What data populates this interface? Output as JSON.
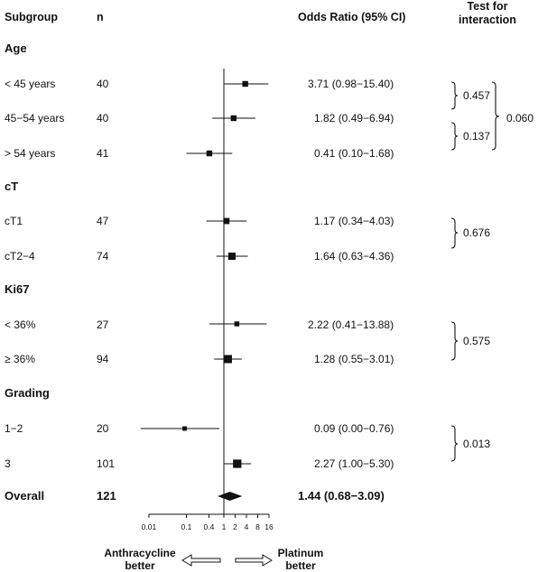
{
  "headers": {
    "subgroup": "Subgroup",
    "n": "n",
    "or": "Odds Ratio (95% CI)",
    "test_line1": "Test for",
    "test_line2": "interaction"
  },
  "groups": [
    "Age",
    "cT",
    "Ki67",
    "Grading"
  ],
  "rows": [
    {
      "label": "< 45 years",
      "n": "40",
      "or_text": "3.71 (0.98−15.40)"
    },
    {
      "label": "45−54 years",
      "n": "40",
      "or_text": "1.82 (0.49−6.94)"
    },
    {
      "label": "> 54 years",
      "n": "41",
      "or_text": "0.41 (0.10−1.68)"
    },
    {
      "label": "cT1",
      "n": "47",
      "or_text": "1.17 (0.34−4.03)"
    },
    {
      "label": "cT2−4",
      "n": "74",
      "or_text": "1.64 (0.63−4.36)"
    },
    {
      "label": "< 36%",
      "n": "27",
      "or_text": "2.22 (0.41−13.88)"
    },
    {
      "label": "≥ 36%",
      "n": "94",
      "or_text": "1.28 (0.55−3.01)"
    },
    {
      "label": "1−2",
      "n": "20",
      "or_text": "0.09 (0.00−0.76)"
    },
    {
      "label": "3",
      "n": "101",
      "or_text": "2.27 (1.00−5.30)"
    }
  ],
  "overall": {
    "label": "Overall",
    "n": "121",
    "or_text": "1.44 (0.68−3.09)"
  },
  "interactions": [
    "0.457",
    "0.137",
    "0.060",
    "0.676",
    "0.575",
    "0.013"
  ],
  "footer": {
    "left_line1": "Anthracycline",
    "left_line2": "better",
    "right_line1": "Platinum",
    "right_line2": "better"
  },
  "chart_data": {
    "type": "forest",
    "x_scale": "log",
    "reference_line": 1,
    "x_ticks": [
      "0.01",
      "0.1",
      "0.4",
      "1",
      "2",
      "4",
      "8",
      "16"
    ],
    "points": [
      {
        "or": 3.71,
        "lo": 0.98,
        "hi": 15.4,
        "n": 40
      },
      {
        "or": 1.82,
        "lo": 0.49,
        "hi": 6.94,
        "n": 40
      },
      {
        "or": 0.41,
        "lo": 0.1,
        "hi": 1.68,
        "n": 41
      },
      {
        "or": 1.17,
        "lo": 0.34,
        "hi": 4.03,
        "n": 47
      },
      {
        "or": 1.64,
        "lo": 0.63,
        "hi": 4.36,
        "n": 74
      },
      {
        "or": 2.22,
        "lo": 0.41,
        "hi": 13.88,
        "n": 27
      },
      {
        "or": 1.28,
        "lo": 0.55,
        "hi": 3.01,
        "n": 94
      },
      {
        "or": 0.09,
        "lo": 0.0,
        "hi": 0.76,
        "n": 20
      },
      {
        "or": 2.27,
        "lo": 1.0,
        "hi": 5.3,
        "n": 101
      }
    ],
    "overall": {
      "or": 1.44,
      "lo": 0.68,
      "hi": 3.09,
      "n": 121
    }
  }
}
